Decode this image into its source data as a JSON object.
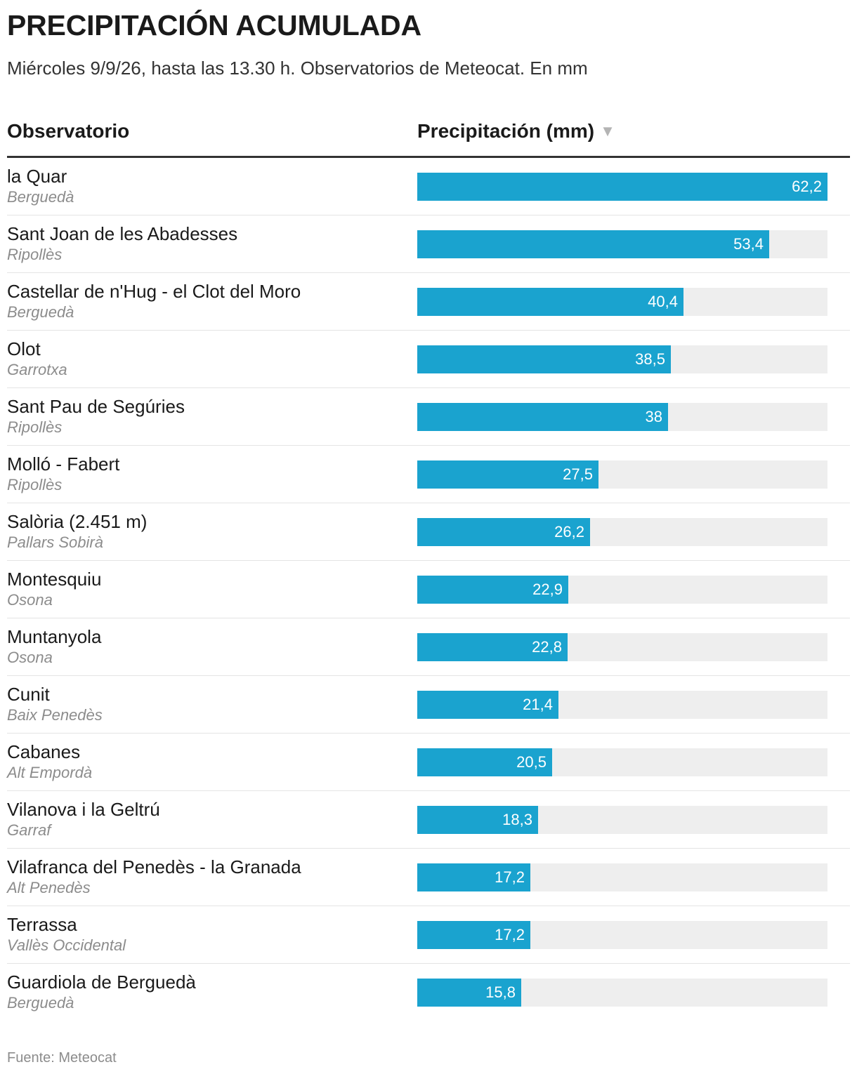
{
  "header": {
    "title": "PRECIPITACIÓN ACUMULADA",
    "subtitle": "Miércoles 9/9/26, hasta las 13.30 h. Observatorios de Meteocat. En mm"
  },
  "table": {
    "col_observatorio": "Observatorio",
    "col_precipitacion": "Precipitación (mm)",
    "sort_icon": "sort-desc-triangle-icon",
    "sort_glyph": "▼"
  },
  "colors": {
    "bar": "#1aa3cf",
    "track": "#eeeeee"
  },
  "chart_data": {
    "type": "bar",
    "orientation": "horizontal",
    "xlim": [
      0,
      62.2
    ],
    "categories": [
      "la Quar",
      "Sant Joan de les Abadesses",
      "Castellar de n'Hug - el Clot del Moro",
      "Olot",
      "Sant Pau de Segúries",
      "Molló - Fabert",
      "Salòria (2.451 m)",
      "Montesquiu",
      "Muntanyola",
      "Cunit",
      "Cabanes",
      "Vilanova i la Geltrú",
      "Vilafranca del Penedès - la Granada",
      "Terrassa",
      "Guardiola de Berguedà"
    ],
    "regions": [
      "Berguedà",
      "Ripollès",
      "Berguedà",
      "Garrotxa",
      "Ripollès",
      "Ripollès",
      "Pallars Sobirà",
      "Osona",
      "Osona",
      "Baix Penedès",
      "Alt Empordà",
      "Garraf",
      "Alt Penedès",
      "Vallès Occidental",
      "Berguedà"
    ],
    "values": [
      62.2,
      53.4,
      40.4,
      38.5,
      38,
      27.5,
      26.2,
      22.9,
      22.8,
      21.4,
      20.5,
      18.3,
      17.2,
      17.2,
      15.8
    ],
    "value_labels": [
      "62,2",
      "53,4",
      "40,4",
      "38,5",
      "38",
      "27,5",
      "26,2",
      "22,9",
      "22,8",
      "21,4",
      "20,5",
      "18,3",
      "17,2",
      "17,2",
      "15,8"
    ]
  },
  "footer": {
    "source": "Fuente: Meteocat"
  }
}
